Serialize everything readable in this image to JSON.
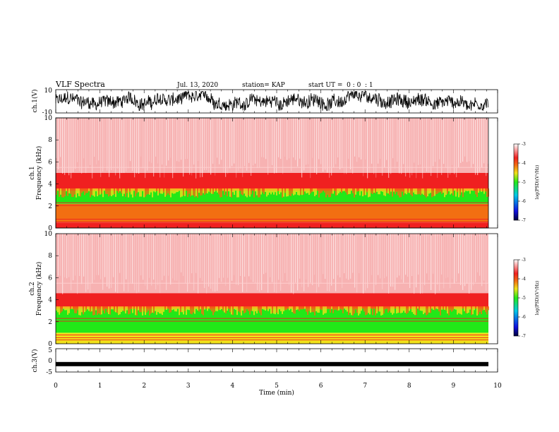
{
  "header": {
    "title": "VLF Spectra",
    "date": "Jul. 13, 2020",
    "station": "station= KAP",
    "start": "start UT =  0 : 0  : 1"
  },
  "chart_data": [
    {
      "type": "line",
      "name": "ch1-waveform",
      "ylabel": "ch.1(V)",
      "ylim": [
        -10,
        10
      ],
      "yticks": [
        "10",
        "-10"
      ],
      "x_range_min": [
        0,
        9.83
      ],
      "description": "noisy waveform oscillating roughly between -7 V and +8 V"
    },
    {
      "type": "heatmap",
      "name": "ch1-spectrogram",
      "ylabel": "ch.1\nFrequency (kHz)",
      "ylim": [
        0,
        10
      ],
      "yticks": [
        "0",
        "2",
        "4",
        "6",
        "8",
        "10"
      ],
      "bands": [
        {
          "from_khz": 0,
          "to_khz": 0.5,
          "color": "mixed red/orange lines"
        },
        {
          "from_khz": 0.5,
          "to_khz": 2.2,
          "color": "orange/yellow"
        },
        {
          "from_khz": 2.2,
          "to_khz": 3.4,
          "color": "green"
        },
        {
          "from_khz": 3.4,
          "to_khz": 5.0,
          "color": "red/orange"
        },
        {
          "from_khz": 5.0,
          "to_khz": 10,
          "color": "light red/pink"
        }
      ]
    },
    {
      "type": "heatmap",
      "name": "ch2-spectrogram",
      "ylabel": "ch.2\nFrequency (kHz)",
      "ylim": [
        0,
        10
      ],
      "yticks": [
        "0",
        "2",
        "4",
        "6",
        "8",
        "10"
      ],
      "bands": [
        {
          "from_khz": 0,
          "to_khz": 1.0,
          "color": "yellow/orange"
        },
        {
          "from_khz": 1.0,
          "to_khz": 3.2,
          "color": "green"
        },
        {
          "from_khz": 3.2,
          "to_khz": 4.6,
          "color": "red/orange"
        },
        {
          "from_khz": 4.6,
          "to_khz": 10,
          "color": "light red/pink"
        }
      ]
    },
    {
      "type": "line",
      "name": "ch3-waveform",
      "ylabel": "ch.3(V)",
      "ylim": [
        -5,
        5
      ],
      "yticks": [
        "5",
        "0",
        "-5"
      ],
      "level_v": -1.6
    }
  ],
  "xaxis": {
    "label": "Time (min)",
    "ticks": [
      "0",
      "1",
      "2",
      "3",
      "4",
      "5",
      "6",
      "7",
      "8",
      "9",
      "10"
    ],
    "range": [
      0,
      10
    ]
  },
  "colorbars": [
    {
      "label": "log(PSD)(V²/Hz)",
      "ticks": [
        "-3",
        "-4",
        "-5",
        "-6",
        "-7"
      ],
      "range": [
        -7,
        -3
      ]
    },
    {
      "label": "log(PSD)(V²/Hz)",
      "ticks": [
        "-3",
        "-4",
        "-5",
        "-6",
        "-7"
      ],
      "range": [
        -7,
        -3
      ]
    }
  ],
  "colors": {
    "pink": "#f7b2b2",
    "red": "#f02020",
    "orange": "#f26f12",
    "yellow": "#f0e01a",
    "green": "#22e818",
    "cyan": "#00c8e6",
    "blue": "#1010e0",
    "navy": "#00003c"
  }
}
